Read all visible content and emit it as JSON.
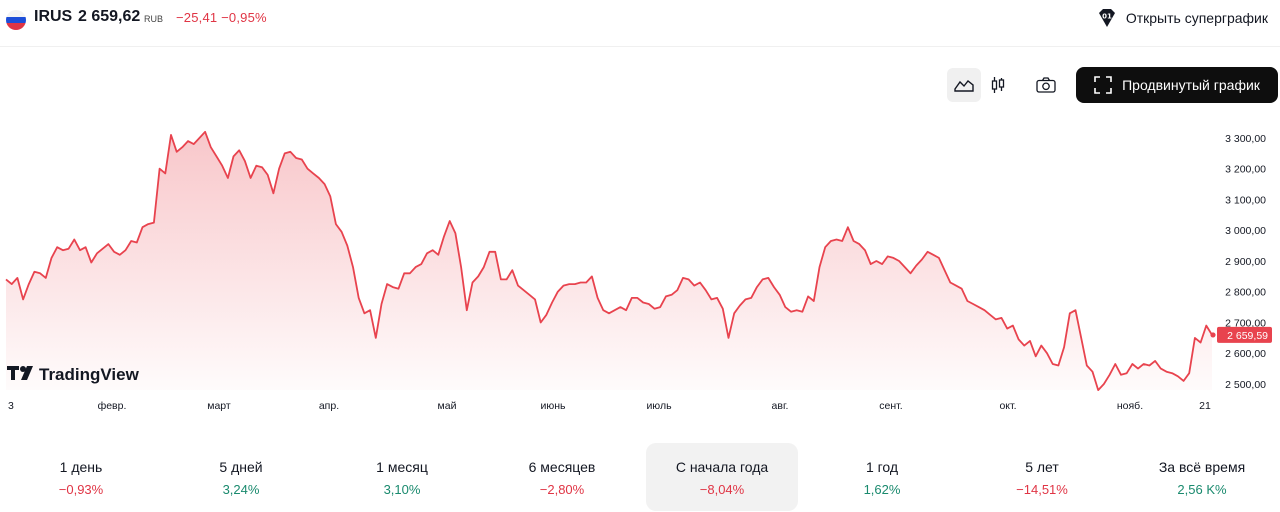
{
  "header": {
    "ticker": "IRUS",
    "price": "2 659,62",
    "currency": "RUB",
    "change": "−25,41  −0,95%",
    "super_chart_label": "Открыть суперграфик"
  },
  "toolbar": {
    "advanced_label": "Продвинутый график"
  },
  "colors": {
    "line": "#e8434e",
    "negative": "#e03545",
    "positive": "#1a8a6e",
    "flag": [
      "#ffffff",
      "#1d4ed8",
      "#e03545"
    ]
  },
  "chart_data": {
    "type": "area",
    "watermark": "TradingView",
    "last_price_label": "2 659,59",
    "x_ticks": [
      "3",
      "февр.",
      "март",
      "апр.",
      "май",
      "июнь",
      "июль",
      "авг.",
      "сент.",
      "окт.",
      "нояб.",
      "21"
    ],
    "y_ticks": [
      "3 300,00",
      "3 200,00",
      "3 100,00",
      "3 000,00",
      "2 900,00",
      "2 800,00",
      "2 700,00",
      "2 600,00",
      "2 500,00"
    ],
    "y_values": [
      3300,
      3200,
      3100,
      3000,
      2900,
      2800,
      2700,
      2600,
      2500
    ],
    "ylim": [
      2463,
      3352
    ],
    "series": [
      {
        "values": [
          2840,
          2825,
          2845,
          2775,
          2825,
          2865,
          2860,
          2845,
          2910,
          2945,
          2935,
          2940,
          2970,
          2935,
          2945,
          2895,
          2925,
          2940,
          2955,
          2930,
          2920,
          2935,
          2965,
          2960,
          3010,
          3020,
          3025,
          3200,
          3185,
          3310,
          3255,
          3270,
          3290,
          3280,
          3300,
          3320,
          3270,
          3240,
          3210,
          3170,
          3240,
          3260,
          3225,
          3170,
          3210,
          3205,
          3180,
          3120,
          3200,
          3250,
          3255,
          3235,
          3230,
          3200,
          3185,
          3170,
          3150,
          3110,
          3020,
          2995,
          2950,
          2880,
          2780,
          2730,
          2740,
          2650,
          2760,
          2825,
          2815,
          2810,
          2860,
          2860,
          2880,
          2890,
          2925,
          2935,
          2920,
          2980,
          3030,
          2990,
          2880,
          2740,
          2830,
          2850,
          2880,
          2930,
          2930,
          2840,
          2840,
          2870,
          2820,
          2805,
          2790,
          2775,
          2700,
          2725,
          2765,
          2800,
          2820,
          2825,
          2825,
          2830,
          2830,
          2850,
          2780,
          2740,
          2730,
          2740,
          2750,
          2740,
          2780,
          2780,
          2765,
          2760,
          2745,
          2750,
          2785,
          2790,
          2805,
          2845,
          2840,
          2820,
          2830,
          2805,
          2775,
          2780,
          2745,
          2650,
          2730,
          2755,
          2775,
          2780,
          2815,
          2840,
          2845,
          2815,
          2790,
          2750,
          2735,
          2740,
          2735,
          2785,
          2770,
          2880,
          2945,
          2965,
          2970,
          2965,
          3010,
          2965,
          2955,
          2935,
          2890,
          2900,
          2890,
          2915,
          2910,
          2900,
          2880,
          2860,
          2885,
          2905,
          2930,
          2920,
          2910,
          2870,
          2830,
          2820,
          2810,
          2770,
          2760,
          2750,
          2740,
          2725,
          2710,
          2715,
          2680,
          2690,
          2645,
          2625,
          2640,
          2590,
          2625,
          2600,
          2565,
          2560,
          2620,
          2730,
          2740,
          2650,
          2560,
          2540,
          2480,
          2500,
          2530,
          2565,
          2530,
          2535,
          2565,
          2550,
          2565,
          2560,
          2575,
          2550,
          2540,
          2535,
          2525,
          2510,
          2535,
          2650,
          2635,
          2690,
          2659.59
        ]
      }
    ]
  },
  "periods": [
    {
      "label": "1 день",
      "value": "−0,93%",
      "sign": "neg"
    },
    {
      "label": "5 дней",
      "value": "3,24%",
      "sign": "pos"
    },
    {
      "label": "1 месяц",
      "value": "3,10%",
      "sign": "pos"
    },
    {
      "label": "6 месяцев",
      "value": "−2,80%",
      "sign": "neg"
    },
    {
      "label": "С начала года",
      "value": "−8,04%",
      "sign": "neg",
      "active": true
    },
    {
      "label": "1 год",
      "value": "1,62%",
      "sign": "pos"
    },
    {
      "label": "5 лет",
      "value": "−14,51%",
      "sign": "neg"
    },
    {
      "label": "За всё время",
      "value": "2,56 K%",
      "sign": "pos"
    }
  ]
}
